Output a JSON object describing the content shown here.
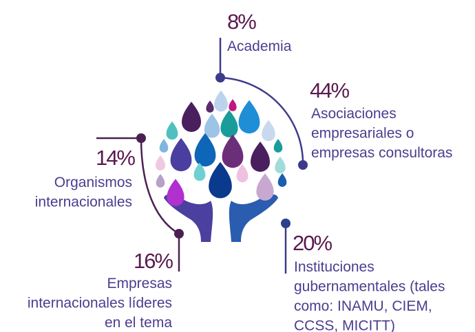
{
  "items": [
    {
      "percent": "8%",
      "lines": [
        "Academia"
      ]
    },
    {
      "percent": "44%",
      "lines": [
        "Asociaciones",
        "empresariales o",
        "empresas consultoras"
      ]
    },
    {
      "percent": "14%",
      "lines": [
        "Organismos",
        "internacionales"
      ]
    },
    {
      "percent": "16%",
      "lines": [
        "Empresas",
        "internacionales líderes",
        "en el tema"
      ]
    },
    {
      "percent": "20%",
      "lines": [
        "Instituciones",
        "gubernamentales (tales",
        "como: INAMU, CIEM,",
        "CCSS, MICITT)"
      ]
    }
  ]
}
